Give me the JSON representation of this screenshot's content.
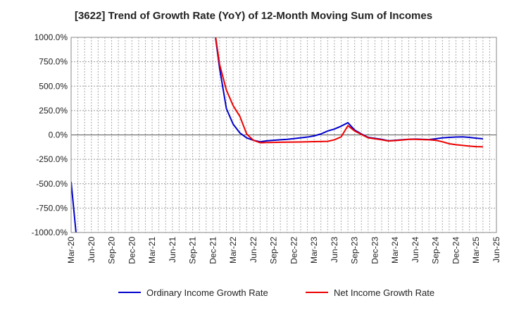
{
  "chart_data": {
    "type": "line",
    "title": "[3622]  Trend of Growth Rate (YoY) of 12-Month Moving Sum of Incomes",
    "xlabel": "",
    "ylabel": "",
    "ylim": [
      -1000,
      1000
    ],
    "y_ticks": [
      1000,
      750,
      500,
      250,
      0,
      -250,
      -500,
      -750,
      -1000
    ],
    "y_tick_labels": [
      "1000.0%",
      "750.0%",
      "500.0%",
      "250.0%",
      "0.0%",
      "-250.0%",
      "-500.0%",
      "-750.0%",
      "-1000.0%"
    ],
    "x_tick_labels": [
      "Mar-20",
      "Jun-20",
      "Sep-20",
      "Dec-20",
      "Mar-21",
      "Jun-21",
      "Sep-21",
      "Dec-21",
      "Mar-22",
      "Jun-22",
      "Sep-22",
      "Dec-22",
      "Mar-23",
      "Jun-23",
      "Sep-23",
      "Dec-23",
      "Mar-24",
      "Jun-24",
      "Sep-24",
      "Dec-24",
      "Mar-25",
      "Jun-25"
    ],
    "x_range_months": [
      0,
      63
    ],
    "grid": true,
    "legend_position": "bottom",
    "series": [
      {
        "name": "Ordinary Income Growth Rate",
        "color": "#0000cc",
        "points": [
          [
            0,
            -480
          ],
          [
            1,
            -1200
          ],
          [
            null,
            null
          ],
          [
            21,
            1200
          ],
          [
            22,
            680
          ],
          [
            23,
            270
          ],
          [
            24,
            110
          ],
          [
            25,
            20
          ],
          [
            26,
            -30
          ],
          [
            27,
            -55
          ],
          [
            28,
            -70
          ],
          [
            29,
            -60
          ],
          [
            30,
            -55
          ],
          [
            31,
            -50
          ],
          [
            32,
            -45
          ],
          [
            33,
            -38
          ],
          [
            34,
            -30
          ],
          [
            35,
            -22
          ],
          [
            36,
            -10
          ],
          [
            37,
            10
          ],
          [
            38,
            40
          ],
          [
            39,
            60
          ],
          [
            40,
            90
          ],
          [
            41,
            125
          ],
          [
            42,
            50
          ],
          [
            43,
            10
          ],
          [
            44,
            -25
          ],
          [
            45,
            -35
          ],
          [
            46,
            -45
          ],
          [
            47,
            -60
          ],
          [
            48,
            -55
          ],
          [
            49,
            -50
          ],
          [
            50,
            -45
          ],
          [
            51,
            -42
          ],
          [
            52,
            -45
          ],
          [
            53,
            -48
          ],
          [
            54,
            -40
          ],
          [
            55,
            -30
          ],
          [
            56,
            -25
          ],
          [
            57,
            -22
          ],
          [
            58,
            -20
          ],
          [
            59,
            -25
          ],
          [
            60,
            -33
          ],
          [
            61,
            -40
          ]
        ]
      },
      {
        "name": "Net Income Growth Rate",
        "color": "#ee0000",
        "points": [
          [
            21,
            1200
          ],
          [
            22,
            720
          ],
          [
            23,
            460
          ],
          [
            24,
            300
          ],
          [
            25,
            190
          ],
          [
            26,
            10
          ],
          [
            27,
            -55
          ],
          [
            28,
            -80
          ],
          [
            29,
            -78
          ],
          [
            30,
            -77
          ],
          [
            31,
            -75
          ],
          [
            32,
            -74
          ],
          [
            33,
            -73
          ],
          [
            34,
            -72
          ],
          [
            35,
            -70
          ],
          [
            36,
            -69
          ],
          [
            37,
            -68
          ],
          [
            38,
            -66
          ],
          [
            39,
            -50
          ],
          [
            40,
            -20
          ],
          [
            41,
            95
          ],
          [
            42,
            40
          ],
          [
            43,
            5
          ],
          [
            44,
            -30
          ],
          [
            45,
            -40
          ],
          [
            46,
            -50
          ],
          [
            47,
            -62
          ],
          [
            48,
            -58
          ],
          [
            49,
            -52
          ],
          [
            50,
            -45
          ],
          [
            51,
            -45
          ],
          [
            52,
            -48
          ],
          [
            53,
            -50
          ],
          [
            54,
            -55
          ],
          [
            55,
            -70
          ],
          [
            56,
            -90
          ],
          [
            57,
            -100
          ],
          [
            58,
            -107
          ],
          [
            59,
            -115
          ],
          [
            60,
            -120
          ],
          [
            61,
            -122
          ]
        ]
      }
    ]
  },
  "legend": {
    "items": [
      {
        "label": "Ordinary Income Growth Rate",
        "color": "#0000cc"
      },
      {
        "label": "Net Income Growth Rate",
        "color": "#ee0000"
      }
    ]
  }
}
